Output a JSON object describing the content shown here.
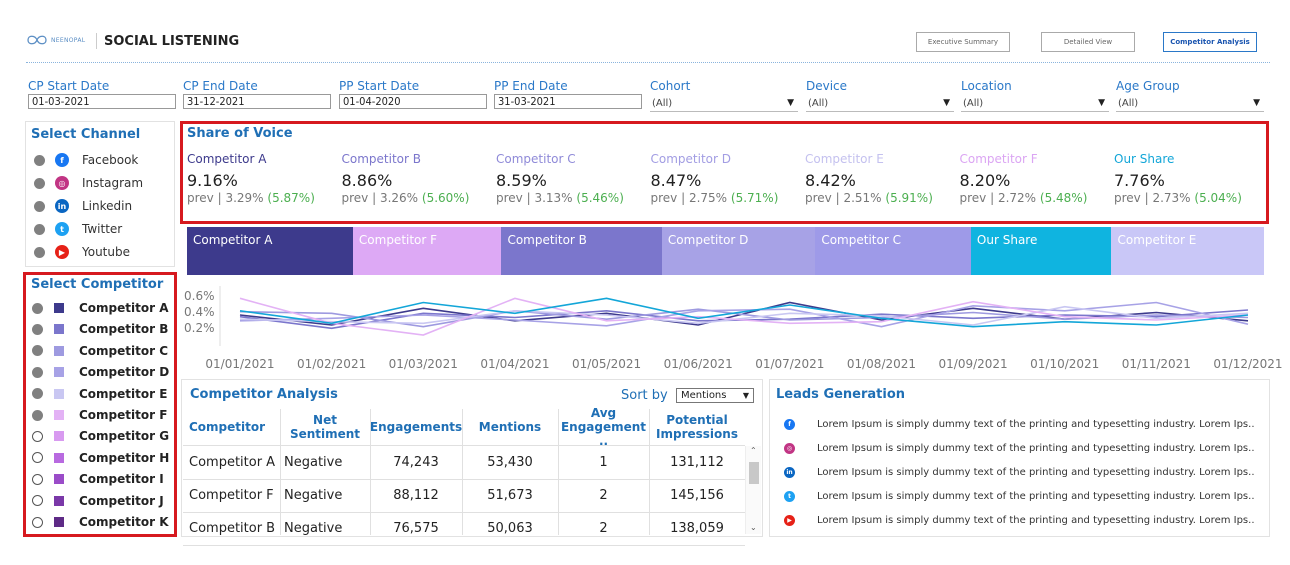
{
  "header": {
    "logo_text": "NEENOPAL",
    "title": "SOCIAL LISTENING",
    "nav": [
      "Executive Summary",
      "Detailed View",
      "Competitor Analysis"
    ]
  },
  "filters": {
    "cp_start": {
      "label": "CP Start Date",
      "value": "01-03-2021"
    },
    "cp_end": {
      "label": "CP End Date",
      "value": "31-12-2021"
    },
    "pp_start": {
      "label": "PP Start Date",
      "value": "01-04-2020"
    },
    "pp_end": {
      "label": "PP End Date",
      "value": "31-03-2021"
    },
    "cohort": {
      "label": "Cohort",
      "value": "(All)"
    },
    "device": {
      "label": "Device",
      "value": "(All)"
    },
    "location": {
      "label": "Location",
      "value": "(All)"
    },
    "age_group": {
      "label": "Age Group",
      "value": "(All)"
    }
  },
  "channels": {
    "title": "Select Channel",
    "items": [
      {
        "label": "Facebook",
        "icon": "facebook-icon",
        "color": "#1877f2",
        "glyph": "f"
      },
      {
        "label": "Instagram",
        "icon": "instagram-icon",
        "color": "#c13584",
        "glyph": "◎"
      },
      {
        "label": "Linkedin",
        "icon": "linkedin-icon",
        "color": "#0a66c2",
        "glyph": "in"
      },
      {
        "label": "Twitter",
        "icon": "twitter-icon",
        "color": "#1da1f2",
        "glyph": "t"
      },
      {
        "label": "Youtube",
        "icon": "youtube-icon",
        "color": "#e62117",
        "glyph": "▶"
      }
    ]
  },
  "competitors": {
    "title": "Select Competitor",
    "items": [
      {
        "label": "Competitor A",
        "color": "#3d3a8c",
        "selected": true
      },
      {
        "label": "Competitor B",
        "color": "#7b76cc",
        "selected": true
      },
      {
        "label": "Competitor C",
        "color": "#9e9ae0",
        "selected": true
      },
      {
        "label": "Competitor D",
        "color": "#a7a2e6",
        "selected": true
      },
      {
        "label": "Competitor E",
        "color": "#c9c7f2",
        "selected": true
      },
      {
        "label": "Competitor F",
        "color": "#e3b2f5",
        "selected": true
      },
      {
        "label": "Competitor G",
        "color": "#d89af0",
        "selected": false
      },
      {
        "label": "Competitor H",
        "color": "#b86ae0",
        "selected": false
      },
      {
        "label": "Competitor I",
        "color": "#9a4cc8",
        "selected": false
      },
      {
        "label": "Competitor J",
        "color": "#7a38a8",
        "selected": false
      },
      {
        "label": "Competitor K",
        "color": "#5e2a86",
        "selected": false
      }
    ]
  },
  "share_of_voice": {
    "title": "Share of Voice",
    "items": [
      {
        "name": "Competitor A",
        "value": "9.16%",
        "prev": "prev | 3.29%",
        "change": "(5.87%)",
        "color": "#3d3a8c"
      },
      {
        "name": "Competitor B",
        "value": "8.86%",
        "prev": "prev | 3.26%",
        "change": "(5.60%)",
        "color": "#7b76cc"
      },
      {
        "name": "Competitor C",
        "value": "8.59%",
        "prev": "prev | 3.13%",
        "change": "(5.46%)",
        "color": "#8f8ad8"
      },
      {
        "name": "Competitor D",
        "value": "8.47%",
        "prev": "prev | 2.75%",
        "change": "(5.71%)",
        "color": "#a29de3"
      },
      {
        "name": "Competitor E",
        "value": "8.42%",
        "prev": "prev | 2.51%",
        "change": "(5.91%)",
        "color": "#c4c1ef"
      },
      {
        "name": "Competitor F",
        "value": "8.20%",
        "prev": "prev | 2.72%",
        "change": "(5.48%)",
        "color": "#dba5f3"
      },
      {
        "name": "Our Share",
        "value": "7.76%",
        "prev": "prev | 2.73%",
        "change": "(5.04%)",
        "color": "#13a6d8"
      }
    ]
  },
  "share_strip": [
    {
      "label": "Competitor A",
      "color": "#3d3a8c",
      "share": 9.16
    },
    {
      "label": "Competitor F",
      "color": "#dda9f5",
      "share": 8.2
    },
    {
      "label": "Competitor B",
      "color": "#7b76cc",
      "share": 8.86
    },
    {
      "label": "Competitor D",
      "color": "#a7a2e6",
      "share": 8.47
    },
    {
      "label": "Competitor C",
      "color": "#9e9ae8",
      "share": 8.59
    },
    {
      "label": "Our Share",
      "color": "#0fb4e0",
      "share": 7.76
    },
    {
      "label": "Competitor E",
      "color": "#c9c7f7",
      "share": 8.42
    }
  ],
  "chart_data": {
    "type": "line",
    "x": [
      "01/01/2021",
      "01/02/2021",
      "01/03/2021",
      "01/04/2021",
      "01/05/2021",
      "01/06/2021",
      "01/07/2021",
      "01/08/2021",
      "01/09/2021",
      "01/10/2021",
      "01/11/2021",
      "01/12/2021"
    ],
    "y_ticks": [
      "0.6%",
      "0.4%",
      "0.2%"
    ],
    "ylim": [
      0.1,
      0.7
    ],
    "series": [
      {
        "name": "Competitor A",
        "color": "#3d3a8c",
        "values": [
          0.4,
          0.28,
          0.48,
          0.33,
          0.42,
          0.28,
          0.55,
          0.34,
          0.48,
          0.35,
          0.43,
          0.33
        ]
      },
      {
        "name": "Competitor B",
        "color": "#7b76cc",
        "values": [
          0.38,
          0.24,
          0.42,
          0.37,
          0.45,
          0.33,
          0.35,
          0.41,
          0.36,
          0.4,
          0.38,
          0.46
        ]
      },
      {
        "name": "Competitor C",
        "color": "#9e9ae0",
        "values": [
          0.44,
          0.42,
          0.26,
          0.45,
          0.35,
          0.47,
          0.34,
          0.37,
          0.43,
          0.35,
          0.4,
          0.37
        ]
      },
      {
        "name": "Competitor D",
        "color": "#a7a2e6",
        "values": [
          0.33,
          0.36,
          0.4,
          0.34,
          0.27,
          0.45,
          0.47,
          0.26,
          0.51,
          0.45,
          0.55,
          0.29
        ]
      },
      {
        "name": "Competitor E",
        "color": "#c9c7f2",
        "values": [
          0.35,
          0.32,
          0.3,
          0.45,
          0.4,
          0.3,
          0.42,
          0.39,
          0.28,
          0.5,
          0.36,
          0.42
        ]
      },
      {
        "name": "Competitor F",
        "color": "#e3b2f5",
        "values": [
          0.6,
          0.3,
          0.16,
          0.6,
          0.33,
          0.38,
          0.3,
          0.32,
          0.56,
          0.38,
          0.34,
          0.4
        ]
      },
      {
        "name": "Our Share",
        "color": "#13a6d8",
        "values": [
          0.45,
          0.3,
          0.55,
          0.42,
          0.6,
          0.36,
          0.52,
          0.36,
          0.26,
          0.32,
          0.28,
          0.4
        ]
      }
    ]
  },
  "competitor_analysis": {
    "title": "Competitor Analysis",
    "sort_label": "Sort by",
    "sort_value": "Mentions",
    "columns": [
      "Competitor",
      "Net Sentiment",
      "Engagements",
      "Mentions",
      "Avg Engagement ..",
      "Potential Impressions"
    ],
    "rows": [
      [
        "Competitor A",
        "Negative",
        "74,243",
        "53,430",
        "1",
        "131,112"
      ],
      [
        "Competitor F",
        "Negative",
        "88,112",
        "51,673",
        "2",
        "145,156"
      ],
      [
        "Competitor B",
        "Negative",
        "76,575",
        "50,063",
        "2",
        "138,059"
      ]
    ]
  },
  "leads": {
    "title": "Leads Generation",
    "items": [
      {
        "icon": "facebook-icon",
        "color": "#1877f2",
        "glyph": "f",
        "text": "Lorem Ipsum is simply dummy text of the printing and typesetting industry. Lorem Ips.."
      },
      {
        "icon": "instagram-icon",
        "color": "#c13584",
        "glyph": "◎",
        "text": "Lorem Ipsum is simply dummy text of the printing and typesetting industry. Lorem Ips.."
      },
      {
        "icon": "linkedin-icon",
        "color": "#0a66c2",
        "glyph": "in",
        "text": "Lorem Ipsum is simply dummy text of the printing and typesetting industry. Lorem Ips.."
      },
      {
        "icon": "twitter-icon",
        "color": "#1da1f2",
        "glyph": "t",
        "text": "Lorem Ipsum is simply dummy text of the printing and typesetting industry. Lorem Ips.."
      },
      {
        "icon": "youtube-icon",
        "color": "#e62117",
        "glyph": "▶",
        "text": "Lorem Ipsum is simply dummy text of the printing and typesetting industry. Lorem Ips.."
      }
    ]
  }
}
